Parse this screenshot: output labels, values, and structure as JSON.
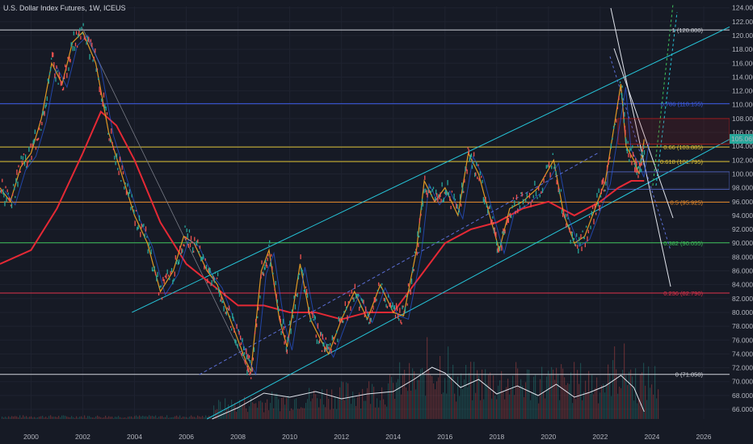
{
  "chart_data": {
    "type": "line",
    "title": "U.S. Dollar Index Futures, 1W, ICEUS",
    "xlim": [
      1998.8,
      2027.0
    ],
    "ylim": [
      64.6,
      124.2
    ],
    "x_ticks": [
      "2000",
      "2002",
      "2004",
      "2006",
      "2008",
      "2010",
      "2012",
      "2014",
      "2016",
      "2018",
      "2020",
      "2022",
      "2024",
      "2026"
    ],
    "y_ticks": [
      "124.000",
      "122.000",
      "120.000",
      "118.000",
      "116.000",
      "114.000",
      "112.000",
      "110.000",
      "108.000",
      "106.000",
      "104.000",
      "102.000",
      "100.000",
      "98.000",
      "96.000",
      "94.000",
      "92.000",
      "90.000",
      "88.000",
      "86.000",
      "84.000",
      "82.000",
      "80.000",
      "78.000",
      "76.000",
      "74.000",
      "72.000",
      "70.000",
      "68.000",
      "66.000"
    ],
    "last_price": "105.065",
    "price": [
      [
        1998.8,
        98
      ],
      [
        1999.2,
        96
      ],
      [
        1999.6,
        101
      ],
      [
        2000.0,
        103
      ],
      [
        2000.4,
        108
      ],
      [
        2000.8,
        116
      ],
      [
        2001.2,
        113
      ],
      [
        2001.6,
        119
      ],
      [
        2002.0,
        120.5
      ],
      [
        2002.5,
        116
      ],
      [
        2003.0,
        106
      ],
      [
        2003.5,
        100
      ],
      [
        2004.0,
        94
      ],
      [
        2004.5,
        90
      ],
      [
        2005.0,
        83
      ],
      [
        2005.5,
        86
      ],
      [
        2005.9,
        91
      ],
      [
        2006.3,
        90
      ],
      [
        2006.8,
        86
      ],
      [
        2007.2,
        84
      ],
      [
        2007.6,
        80
      ],
      [
        2008.0,
        76
      ],
      [
        2008.3,
        73
      ],
      [
        2008.5,
        71.5
      ],
      [
        2008.9,
        86
      ],
      [
        2009.2,
        89
      ],
      [
        2009.6,
        79
      ],
      [
        2009.9,
        75
      ],
      [
        2010.4,
        87
      ],
      [
        2010.8,
        79
      ],
      [
        2011.2,
        76
      ],
      [
        2011.5,
        74
      ],
      [
        2012.0,
        79
      ],
      [
        2012.5,
        83
      ],
      [
        2013.0,
        79
      ],
      [
        2013.5,
        84
      ],
      [
        2014.0,
        80
      ],
      [
        2014.4,
        79.5
      ],
      [
        2014.9,
        89
      ],
      [
        2015.2,
        99
      ],
      [
        2015.6,
        96
      ],
      [
        2016.0,
        98
      ],
      [
        2016.5,
        94
      ],
      [
        2016.9,
        103
      ],
      [
        2017.3,
        100
      ],
      [
        2017.8,
        93
      ],
      [
        2018.1,
        89
      ],
      [
        2018.5,
        95
      ],
      [
        2019.0,
        96
      ],
      [
        2019.6,
        98
      ],
      [
        2020.2,
        102
      ],
      [
        2020.6,
        94
      ],
      [
        2021.0,
        90
      ],
      [
        2021.4,
        91
      ],
      [
        2021.9,
        96
      ],
      [
        2022.2,
        99
      ],
      [
        2022.8,
        113
      ],
      [
        2023.0,
        104
      ],
      [
        2023.3,
        102
      ],
      [
        2023.5,
        100
      ],
      [
        2023.7,
        105
      ]
    ],
    "ma_red": [
      [
        1998.8,
        87
      ],
      [
        2000.0,
        89
      ],
      [
        2001.0,
        95
      ],
      [
        2002.0,
        103
      ],
      [
        2002.7,
        109
      ],
      [
        2003.3,
        107
      ],
      [
        2004.0,
        102
      ],
      [
        2005.0,
        93
      ],
      [
        2006.0,
        87
      ],
      [
        2007.0,
        84
      ],
      [
        2008.0,
        81
      ],
      [
        2009.0,
        81
      ],
      [
        2010.0,
        80
      ],
      [
        2011.0,
        80
      ],
      [
        2012.0,
        79
      ],
      [
        2013.0,
        80
      ],
      [
        2014.0,
        80
      ],
      [
        2015.0,
        85
      ],
      [
        2016.0,
        90
      ],
      [
        2017.0,
        92
      ],
      [
        2018.0,
        93
      ],
      [
        2019.0,
        95
      ],
      [
        2020.0,
        96
      ],
      [
        2021.0,
        94
      ],
      [
        2022.0,
        96
      ],
      [
        2022.7,
        98
      ],
      [
        2023.2,
        99
      ],
      [
        2023.7,
        99
      ]
    ],
    "fib_levels": [
      {
        "label": "1 (120.800)",
        "value": 120.8,
        "color": "#d1d4dc"
      },
      {
        "label": "0.786 (110.155)",
        "value": 110.155,
        "color": "#3d5ce6"
      },
      {
        "label": "0.66 (103.885)",
        "value": 103.885,
        "color": "#e0c436"
      },
      {
        "label": "0.618 (101.795)",
        "value": 101.795,
        "color": "#e0c436"
      },
      {
        "label": "0.5 (95.925)",
        "value": 95.925,
        "color": "#e88a2a"
      },
      {
        "label": "0.382 (90.055)",
        "value": 90.055,
        "color": "#3ec35a"
      },
      {
        "label": "0.236 (82.790)",
        "value": 82.79,
        "color": "#e0314a"
      },
      {
        "label": "0 (71.050)",
        "value": 71.05,
        "color": "#d1d4dc"
      }
    ],
    "channel": {
      "upper": [
        [
          2003.9,
          80
        ],
        [
          2023.5,
          115
        ]
      ],
      "lower": [
        [
          2006.8,
          64.6
        ],
        [
          2023.5,
          98
        ]
      ],
      "dashed": [
        [
          2006.5,
          71
        ],
        [
          2021.9,
          103
        ]
      ]
    },
    "legend": "none"
  }
}
